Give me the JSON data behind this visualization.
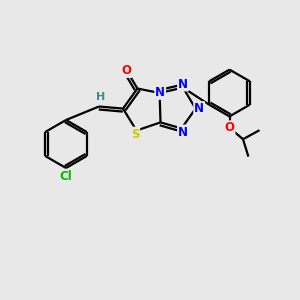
{
  "background_color": "#e8e8e8",
  "bond_color": "#000000",
  "atom_colors": {
    "O": "#ff0000",
    "N": "#0000ff",
    "S": "#cccc00",
    "Cl": "#00bb00",
    "C": "#000000",
    "H": "#448888"
  },
  "figsize": [
    3.0,
    3.0
  ],
  "dpi": 100,
  "lw": 1.6
}
